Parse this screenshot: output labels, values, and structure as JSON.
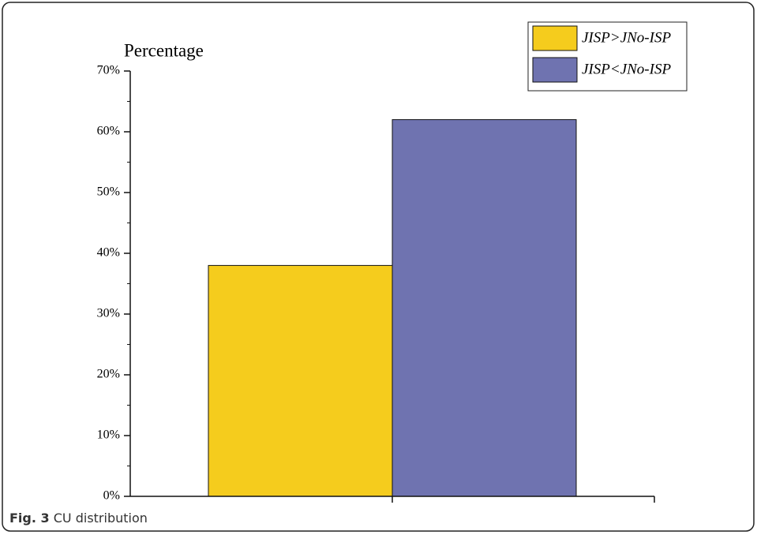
{
  "chart_data": {
    "type": "bar",
    "y_label": "Percentage",
    "categories": [
      null,
      null
    ],
    "values": [
      38,
      62
    ],
    "colors": [
      "#f5cc1d",
      "#6f73b0"
    ],
    "legend": [
      "JISP>JNo-ISP",
      "JISP<JNo-ISP"
    ],
    "ylim": [
      0,
      70
    ],
    "yticks": [
      {
        "value": 0,
        "label": "0%"
      },
      {
        "value": 10,
        "label": "10%"
      },
      {
        "value": 20,
        "label": "20%"
      },
      {
        "value": 30,
        "label": "30%"
      },
      {
        "value": 40,
        "label": "40%"
      },
      {
        "value": 50,
        "label": "50%"
      },
      {
        "value": 60,
        "label": "60%"
      },
      {
        "value": 70,
        "label": "70%"
      }
    ],
    "grid": false
  },
  "caption": {
    "label": "Fig. 3",
    "text": "CU distribution"
  }
}
